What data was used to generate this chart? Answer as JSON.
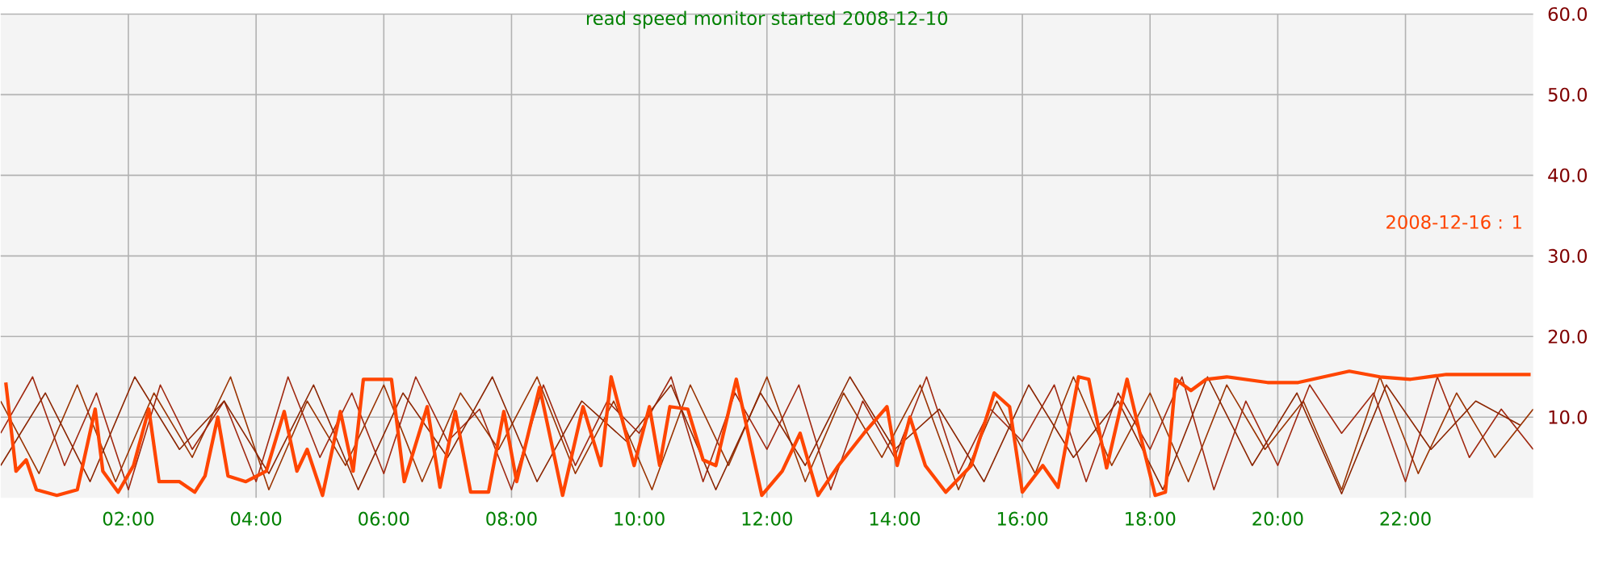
{
  "chart_data": {
    "type": "line",
    "title": "read speed monitor started 2008-12-10",
    "xlim": [
      0,
      24
    ],
    "ylim": [
      0,
      60
    ],
    "xticks": [
      {
        "value": 2,
        "label": "02:00"
      },
      {
        "value": 4,
        "label": "04:00"
      },
      {
        "value": 6,
        "label": "06:00"
      },
      {
        "value": 8,
        "label": "08:00"
      },
      {
        "value": 10,
        "label": "10:00"
      },
      {
        "value": 12,
        "label": "12:00"
      },
      {
        "value": 14,
        "label": "14:00"
      },
      {
        "value": 16,
        "label": "16:00"
      },
      {
        "value": 18,
        "label": "18:00"
      },
      {
        "value": 20,
        "label": "20:00"
      },
      {
        "value": 22,
        "label": "22:00"
      }
    ],
    "yticks": [
      {
        "value": 10,
        "label": "10.0"
      },
      {
        "value": 20,
        "label": "20.0"
      },
      {
        "value": 30,
        "label": "30.0"
      },
      {
        "value": 40,
        "label": "40.0"
      },
      {
        "value": 50,
        "label": "50.0"
      },
      {
        "value": 60,
        "label": "60.0"
      }
    ],
    "grid": true,
    "line_style": "solid",
    "marker": "none",
    "series": [
      {
        "color": "#993300",
        "x": [
          0,
          0.6,
          1.2,
          1.8,
          2.4,
          3.0,
          3.6,
          4.2,
          4.8,
          5.4,
          6.0,
          6.6,
          7.2,
          7.8,
          8.4,
          9.0,
          9.6,
          10.2,
          10.8,
          11.4,
          12.0,
          12.6,
          13.2,
          13.8,
          14.4,
          15.0,
          15.6,
          16.2,
          16.8,
          17.4,
          18.0,
          18.6,
          19.2,
          19.8,
          20.4,
          21.0,
          21.6,
          22.2,
          22.8,
          23.4,
          24.0
        ],
        "values": [
          12,
          3,
          14,
          2,
          13,
          5,
          15,
          1,
          12,
          4,
          14,
          2,
          13,
          6,
          15,
          3,
          12,
          1,
          14,
          4,
          15,
          2,
          13,
          5,
          14,
          1,
          12,
          3,
          15,
          4,
          13,
          2,
          14,
          6,
          12,
          1,
          15,
          3,
          13,
          5,
          11
        ]
      },
      {
        "color": "#a02810",
        "x": [
          0,
          0.5,
          1.0,
          1.5,
          2.0,
          2.5,
          3.0,
          3.5,
          4.0,
          4.5,
          5.0,
          5.5,
          6.0,
          6.5,
          7.0,
          7.5,
          8.0,
          8.5,
          9.0,
          9.5,
          10.0,
          10.5,
          11.0,
          11.5,
          12.0,
          12.5,
          13.0,
          13.5,
          14.0,
          14.5,
          15.0,
          15.5,
          16.0,
          16.5,
          17.0,
          17.5,
          18.0,
          18.5,
          19.0,
          19.5,
          20.0,
          20.5,
          21.0,
          21.5,
          22.0,
          22.5,
          23.0,
          23.5,
          24.0
        ],
        "values": [
          8,
          15,
          4,
          13,
          1,
          14,
          6,
          12,
          2,
          15,
          5,
          13,
          3,
          15,
          7,
          11,
          1,
          14,
          4,
          12,
          8,
          15,
          2,
          13,
          6,
          14,
          1,
          12,
          5,
          15,
          3,
          11,
          7,
          14,
          2,
          13,
          6,
          15,
          1,
          12,
          4,
          14,
          8,
          13,
          2,
          15,
          5,
          11,
          6
        ]
      },
      {
        "color": "#8b2500",
        "x": [
          0,
          0.7,
          1.4,
          2.1,
          2.8,
          3.5,
          4.2,
          4.9,
          5.6,
          6.3,
          7.0,
          7.7,
          8.4,
          9.1,
          9.8,
          10.5,
          11.2,
          11.9,
          12.6,
          13.3,
          14.0,
          14.7,
          15.4,
          16.1,
          16.8,
          17.5,
          18.2,
          18.9,
          19.6,
          20.3,
          21.0,
          21.7,
          22.4,
          23.1,
          23.8
        ],
        "values": [
          4,
          13,
          2,
          15,
          6,
          12,
          3,
          14,
          1,
          13,
          5,
          15,
          2,
          12,
          7,
          14,
          1,
          13,
          4,
          15,
          6,
          11,
          2,
          14,
          5,
          12,
          1,
          15,
          4,
          13,
          0.5,
          14,
          6,
          12,
          9
        ]
      },
      {
        "name": "2008-12-16 : 1",
        "color": "#ff4500",
        "x": [
          0.08,
          0.24,
          0.4,
          0.56,
          0.88,
          1.2,
          1.36,
          1.48,
          1.6,
          1.84,
          2.08,
          2.32,
          2.48,
          2.8,
          3.04,
          3.2,
          3.4,
          3.56,
          3.84,
          4.16,
          4.44,
          4.64,
          4.8,
          5.04,
          5.32,
          5.52,
          5.68,
          6.12,
          6.32,
          6.68,
          6.88,
          7.12,
          7.36,
          7.64,
          7.88,
          8.08,
          8.44,
          8.8,
          9.12,
          9.4,
          9.56,
          9.92,
          10.16,
          10.32,
          10.48,
          10.76,
          11.0,
          11.2,
          11.52,
          11.92,
          12.24,
          12.52,
          12.8,
          13.12,
          13.52,
          13.88,
          14.04,
          14.24,
          14.48,
          14.8,
          15.2,
          15.56,
          15.8,
          16.0,
          16.32,
          16.56,
          16.88,
          17.04,
          17.32,
          17.64,
          17.84,
          18.08,
          18.24,
          18.4,
          18.64,
          18.88,
          19.2,
          19.84,
          20.32,
          21.12,
          21.6,
          22.08,
          22.64,
          23.52,
          23.96
        ],
        "values": [
          14.3,
          3.3,
          4.7,
          1.0,
          0.3,
          1.0,
          6.7,
          11,
          3.3,
          0.7,
          4,
          11,
          2,
          2,
          0.7,
          2.7,
          10,
          2.7,
          2,
          3.3,
          10.7,
          3.3,
          6,
          0.3,
          10.7,
          3.3,
          14.7,
          14.7,
          2,
          11.3,
          1.3,
          10.7,
          0.7,
          0.7,
          10.7,
          2,
          13.7,
          0.3,
          11.3,
          4,
          15,
          4,
          11.3,
          4,
          11.3,
          11,
          4.7,
          4,
          14.7,
          0.3,
          3.3,
          8,
          0.3,
          4,
          8,
          11.3,
          4,
          10,
          4,
          0.7,
          4,
          13,
          11.3,
          0.7,
          4,
          1.3,
          15,
          14.7,
          3.7,
          14.7,
          8,
          0.3,
          0.7,
          14.7,
          13.3,
          14.7,
          15,
          14.3,
          14.3,
          15.7,
          15,
          14.7,
          15.3,
          15.3,
          15.3
        ]
      }
    ]
  }
}
